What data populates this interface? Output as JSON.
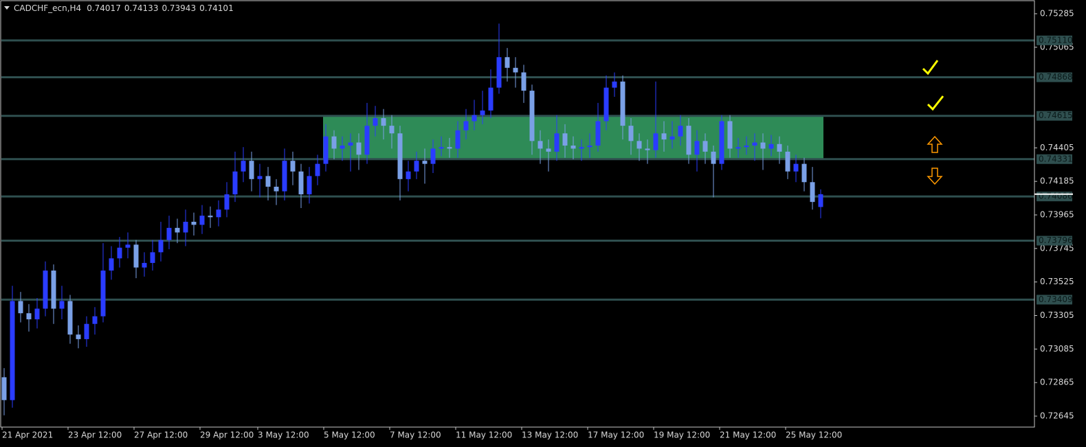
{
  "chart_data": {
    "type": "candlestick",
    "title": "CADCHF_ecn,H4",
    "categories": [
      "21 Apr 2021",
      null,
      null,
      null,
      null,
      null,
      null,
      null,
      "23 Apr 12:00",
      null,
      null,
      null,
      null,
      null,
      null,
      null,
      "27 Apr 12:00",
      null,
      null,
      null,
      null,
      null,
      null,
      null,
      "29 Apr 12:00",
      null,
      null,
      null,
      null,
      null,
      null,
      "3 May 12:00",
      null,
      null,
      null,
      null,
      null,
      null,
      null,
      "5 May 12:00",
      null,
      null,
      null,
      null,
      null,
      null,
      null,
      "7 May 12:00",
      null,
      null,
      null,
      null,
      null,
      null,
      null,
      "11 May 12:00",
      null,
      null,
      null,
      null,
      null,
      null,
      null,
      "13 May 12:00",
      null,
      null,
      null,
      null,
      null,
      null,
      null,
      "17 May 12:00",
      null,
      null,
      null,
      null,
      null,
      null,
      null,
      "19 May 12:00",
      null,
      null,
      null,
      null,
      null,
      null,
      null,
      "21 May 12:00",
      null,
      null,
      null,
      null,
      null,
      null,
      null,
      "25 May 12:00",
      null,
      null,
      null,
      null
    ],
    "open": [
      0.729,
      0.7275,
      0.734,
      0.7332,
      0.7328,
      0.7335,
      0.736,
      0.7335,
      0.734,
      0.7318,
      0.7315,
      0.7325,
      0.733,
      0.736,
      0.7368,
      0.7375,
      0.7377,
      0.7362,
      0.7365,
      0.7372,
      0.738,
      0.7388,
      0.7385,
      0.7392,
      0.739,
      0.7396,
      0.7395,
      0.74,
      0.741,
      0.7425,
      0.7432,
      0.742,
      0.7422,
      0.7415,
      0.7412,
      0.7432,
      0.7425,
      0.741,
      0.7422,
      0.743,
      0.7448,
      0.744,
      0.7442,
      0.7444,
      0.7436,
      0.7455,
      0.746,
      0.7455,
      0.745,
      0.742,
      0.7425,
      0.7432,
      0.743,
      0.744,
      0.7441,
      0.744,
      0.7452,
      0.7458,
      0.7462,
      0.7465,
      0.748,
      0.75,
      0.7493,
      0.749,
      0.7478,
      0.7445,
      0.744,
      0.7438,
      0.745,
      0.7442,
      0.744,
      0.7441,
      0.7442,
      0.7458,
      0.748,
      0.7484,
      0.7455,
      0.7445,
      0.744,
      0.7439,
      0.745,
      0.7446,
      0.7448,
      0.7455,
      0.7436,
      0.7445,
      0.7438,
      0.743,
      0.7458,
      0.744,
      0.7441,
      0.7442,
      0.7444,
      0.744,
      0.7443,
      0.7438,
      0.7425,
      0.743,
      0.7418,
      0.74017
    ],
    "high": [
      0.7296,
      0.735,
      0.7346,
      0.7338,
      0.7342,
      0.7366,
      0.7364,
      0.735,
      0.7344,
      0.7324,
      0.733,
      0.7336,
      0.7378,
      0.7376,
      0.7382,
      0.7385,
      0.738,
      0.7372,
      0.738,
      0.7392,
      0.7396,
      0.7394,
      0.74,
      0.7398,
      0.7403,
      0.7402,
      0.7406,
      0.7418,
      0.7438,
      0.7441,
      0.7438,
      0.743,
      0.7428,
      0.742,
      0.744,
      0.7438,
      0.743,
      0.7428,
      0.7436,
      0.7456,
      0.7452,
      0.7448,
      0.745,
      0.745,
      0.747,
      0.7468,
      0.7466,
      0.7462,
      0.7455,
      0.7432,
      0.7438,
      0.744,
      0.7446,
      0.7448,
      0.7447,
      0.7458,
      0.7466,
      0.7472,
      0.7478,
      0.7492,
      0.7522,
      0.7506,
      0.75,
      0.7495,
      0.7482,
      0.7452,
      0.7446,
      0.7462,
      0.7456,
      0.7448,
      0.7446,
      0.745,
      0.747,
      0.7488,
      0.749,
      0.7488,
      0.746,
      0.745,
      0.7446,
      0.7484,
      0.7458,
      0.7458,
      0.7462,
      0.746,
      0.7452,
      0.745,
      0.7442,
      0.7462,
      0.7462,
      0.7447,
      0.7448,
      0.745,
      0.745,
      0.7449,
      0.7448,
      0.7442,
      0.7436,
      0.7434,
      0.7428,
      0.74133
    ],
    "low": [
      0.7265,
      0.727,
      0.7326,
      0.732,
      0.7322,
      0.733,
      0.7325,
      0.7328,
      0.7312,
      0.7309,
      0.731,
      0.7318,
      0.7326,
      0.7354,
      0.7362,
      0.7368,
      0.7355,
      0.7356,
      0.736,
      0.7366,
      0.7374,
      0.7378,
      0.7376,
      0.7383,
      0.7384,
      0.7388,
      0.7389,
      0.7395,
      0.7405,
      0.7418,
      0.7412,
      0.7408,
      0.7406,
      0.7403,
      0.7406,
      0.7416,
      0.7401,
      0.7404,
      0.7416,
      0.7425,
      0.7433,
      0.7432,
      0.7425,
      0.7426,
      0.743,
      0.7448,
      0.7446,
      0.744,
      0.7406,
      0.7412,
      0.742,
      0.7417,
      0.7424,
      0.7435,
      0.7434,
      0.7434,
      0.7446,
      0.7452,
      0.7456,
      0.746,
      0.7476,
      0.7484,
      0.748,
      0.747,
      0.7436,
      0.743,
      0.7425,
      0.7432,
      0.7434,
      0.7433,
      0.7432,
      0.7434,
      0.7438,
      0.7452,
      0.7474,
      0.7446,
      0.7436,
      0.7432,
      0.743,
      0.7434,
      0.7438,
      0.744,
      0.7442,
      0.743,
      0.7425,
      0.743,
      0.7408,
      0.7426,
      0.7434,
      0.7434,
      0.7436,
      0.7432,
      0.7426,
      0.7435,
      0.743,
      0.742,
      0.7418,
      0.7412,
      0.74,
      0.73943
    ],
    "close": [
      0.7275,
      0.734,
      0.7332,
      0.7328,
      0.7335,
      0.736,
      0.7335,
      0.734,
      0.7318,
      0.7315,
      0.7325,
      0.733,
      0.736,
      0.7368,
      0.7375,
      0.7377,
      0.7362,
      0.7365,
      0.7372,
      0.738,
      0.7388,
      0.7385,
      0.7392,
      0.739,
      0.7396,
      0.7395,
      0.74,
      0.741,
      0.7425,
      0.7432,
      0.742,
      0.7422,
      0.7415,
      0.7412,
      0.7432,
      0.7425,
      0.741,
      0.7422,
      0.743,
      0.7448,
      0.744,
      0.7442,
      0.7444,
      0.7436,
      0.7455,
      0.746,
      0.7455,
      0.745,
      0.742,
      0.7425,
      0.7432,
      0.743,
      0.744,
      0.7441,
      0.744,
      0.7452,
      0.7458,
      0.7462,
      0.7465,
      0.748,
      0.75,
      0.7493,
      0.749,
      0.7478,
      0.7445,
      0.744,
      0.7438,
      0.745,
      0.7442,
      0.744,
      0.7441,
      0.7442,
      0.7458,
      0.748,
      0.7484,
      0.7455,
      0.7445,
      0.744,
      0.7439,
      0.745,
      0.7446,
      0.7448,
      0.7455,
      0.7436,
      0.7445,
      0.7438,
      0.743,
      0.7458,
      0.744,
      0.7441,
      0.7442,
      0.7444,
      0.744,
      0.7443,
      0.7438,
      0.7425,
      0.743,
      0.7418,
      0.7405,
      0.74101
    ],
    "bull_color": "#2a3cff",
    "bear_color": "#7aa0e6",
    "ylim": [
      0.72573,
      0.75375
    ],
    "yticks": [
      0.75285,
      0.75065,
      0.74405,
      0.74185,
      0.73965,
      0.73745,
      0.73525,
      0.73305,
      0.73085,
      0.72865,
      0.72645
    ],
    "levels": [
      {
        "value": 0.7511,
        "label": "0.75110"
      },
      0.74868,
      0.74615,
      0.74331,
      0.74086,
      0.73796,
      0.73409
    ],
    "level_color": "#2f4f4f",
    "zone": {
      "high": 0.74615,
      "low": 0.74331,
      "color": "#2e8b57"
    }
  }
}
